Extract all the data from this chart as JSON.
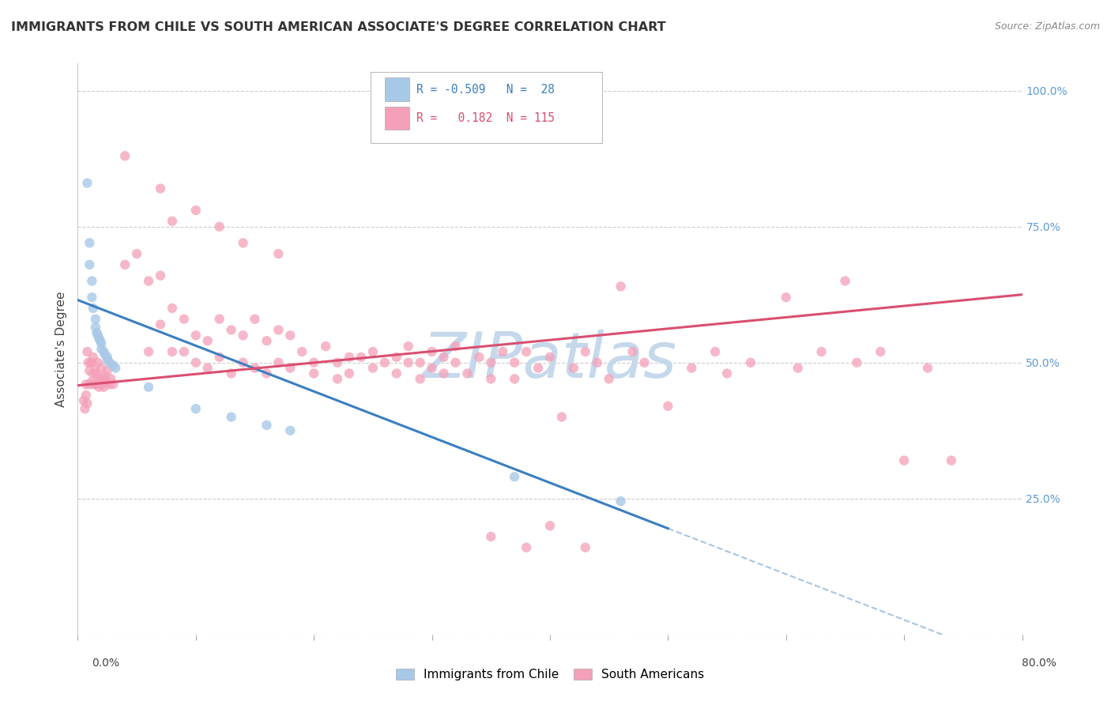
{
  "title": "IMMIGRANTS FROM CHILE VS SOUTH AMERICAN ASSOCIATE'S DEGREE CORRELATION CHART",
  "source": "Source: ZipAtlas.com",
  "ylabel": "Associate's Degree",
  "y_ticks": [
    0.0,
    0.25,
    0.5,
    0.75,
    1.0
  ],
  "y_tick_labels": [
    "",
    "25.0%",
    "50.0%",
    "75.0%",
    "100.0%"
  ],
  "color_chile": "#a8c8e8",
  "color_chile_line": "#3a7fc1",
  "color_sa": "#f4a0b8",
  "color_sa_line": "#d94f70",
  "watermark_color": "#c5d8ec",
  "background": "#ffffff",
  "grid_color": "#cccccc",
  "xlim": [
    0.0,
    0.8
  ],
  "ylim": [
    0.0,
    1.05
  ],
  "chile_line_x0": 0.0,
  "chile_line_y0": 0.615,
  "chile_line_x1": 0.5,
  "chile_line_y1": 0.195,
  "chile_line_ext_x1": 0.8,
  "sa_line_x0": 0.0,
  "sa_line_y0": 0.458,
  "sa_line_x1": 0.8,
  "sa_line_y1": 0.625
}
